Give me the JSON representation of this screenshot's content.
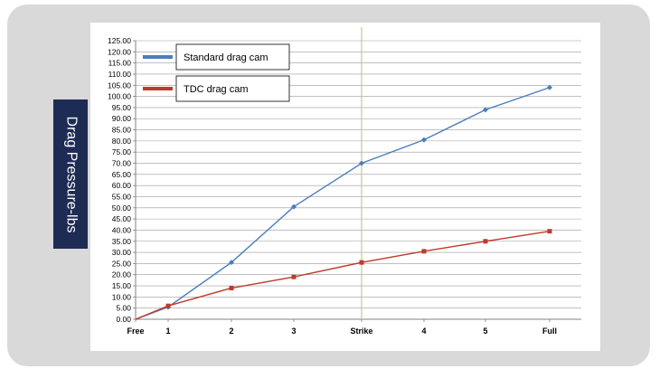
{
  "chart_data": {
    "type": "line",
    "ylabel": "Drag Pressure-lbs",
    "xlabel": "",
    "title": "",
    "categories": [
      "Free",
      "1",
      "2",
      "3",
      "Strike",
      "4",
      "5",
      "Full"
    ],
    "ylim": [
      0,
      125
    ],
    "ytick_step": 5,
    "grid": true,
    "legend_placement": "top-left",
    "marker_category": "Strike",
    "series": [
      {
        "name": "Standard drag cam",
        "color": "#4a7ebb",
        "marker": "diamond",
        "values": [
          0,
          5.5,
          25.5,
          50.5,
          70,
          80.5,
          94,
          104
        ]
      },
      {
        "name": "TDC  drag cam",
        "color": "#c0392b",
        "marker": "square",
        "values": [
          0,
          6,
          14,
          19,
          25.5,
          30.5,
          35,
          39.5
        ]
      }
    ],
    "colors": {
      "strike_line": "#c6c993",
      "gridline": "#9a9a9a",
      "axis": "#808080"
    }
  }
}
